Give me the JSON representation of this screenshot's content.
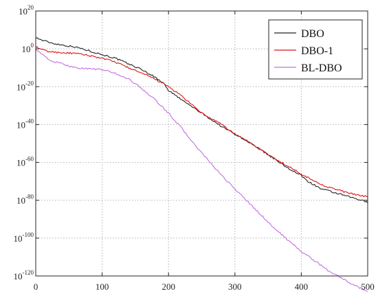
{
  "chart_data": {
    "type": "line",
    "title": "",
    "xlabel": "",
    "ylabel": "",
    "xlim": [
      0,
      500
    ],
    "ylim_exponent": [
      -120,
      20
    ],
    "y_scale": "log10",
    "grid": true,
    "legend_position": "top-right",
    "x_ticks": [
      "0",
      "100",
      "200",
      "300",
      "400",
      "500"
    ],
    "y_ticks": [
      {
        "base": "10",
        "exp": "20"
      },
      {
        "base": "10",
        "exp": "0"
      },
      {
        "base": "10",
        "exp": "-20"
      },
      {
        "base": "10",
        "exp": "-40"
      },
      {
        "base": "10",
        "exp": "-60"
      },
      {
        "base": "10",
        "exp": "-80"
      },
      {
        "base": "10",
        "exp": "-100"
      },
      {
        "base": "10",
        "exp": "-120"
      }
    ],
    "series": [
      {
        "name": "DBO",
        "color": "#222222",
        "x": [
          0,
          10,
          25,
          40,
          60,
          80,
          100,
          120,
          140,
          160,
          180,
          195,
          200,
          220,
          250,
          280,
          300,
          320,
          350,
          380,
          400,
          410,
          430,
          450,
          470,
          490,
          500
        ],
        "log10_y": [
          6,
          4.5,
          3,
          2,
          1,
          -1,
          -3,
          -5,
          -8,
          -11,
          -15,
          -19,
          -22,
          -27,
          -34,
          -41,
          -45,
          -49,
          -56,
          -63,
          -67,
          -70,
          -74,
          -76,
          -78,
          -80,
          -81
        ]
      },
      {
        "name": "DBO-1",
        "color": "#e01010",
        "x": [
          0,
          10,
          20,
          40,
          60,
          80,
          100,
          120,
          140,
          160,
          180,
          195,
          200,
          220,
          250,
          280,
          300,
          320,
          350,
          380,
          400,
          420,
          440,
          460,
          480,
          500
        ],
        "log10_y": [
          1,
          -0.5,
          -1.5,
          -2,
          -2.5,
          -3.5,
          -5,
          -7,
          -10,
          -13,
          -16,
          -19,
          -20,
          -25,
          -34,
          -40,
          -45,
          -49,
          -56,
          -62,
          -66,
          -70,
          -73,
          -75,
          -77,
          -78
        ]
      },
      {
        "name": "BL-DBO",
        "color": "#c070e0",
        "x": [
          0,
          10,
          20,
          40,
          60,
          80,
          100,
          120,
          140,
          160,
          180,
          200,
          220,
          240,
          260,
          280,
          300,
          320,
          340,
          360,
          380,
          400,
          420,
          440,
          460,
          480,
          500
        ],
        "log10_y": [
          0,
          -3,
          -6,
          -8,
          -10,
          -10.5,
          -11,
          -13,
          -16,
          -21,
          -27,
          -34,
          -42,
          -51,
          -59,
          -67,
          -74,
          -81,
          -88,
          -95,
          -101,
          -107,
          -112,
          -117,
          -121,
          -125,
          -128
        ]
      }
    ]
  }
}
